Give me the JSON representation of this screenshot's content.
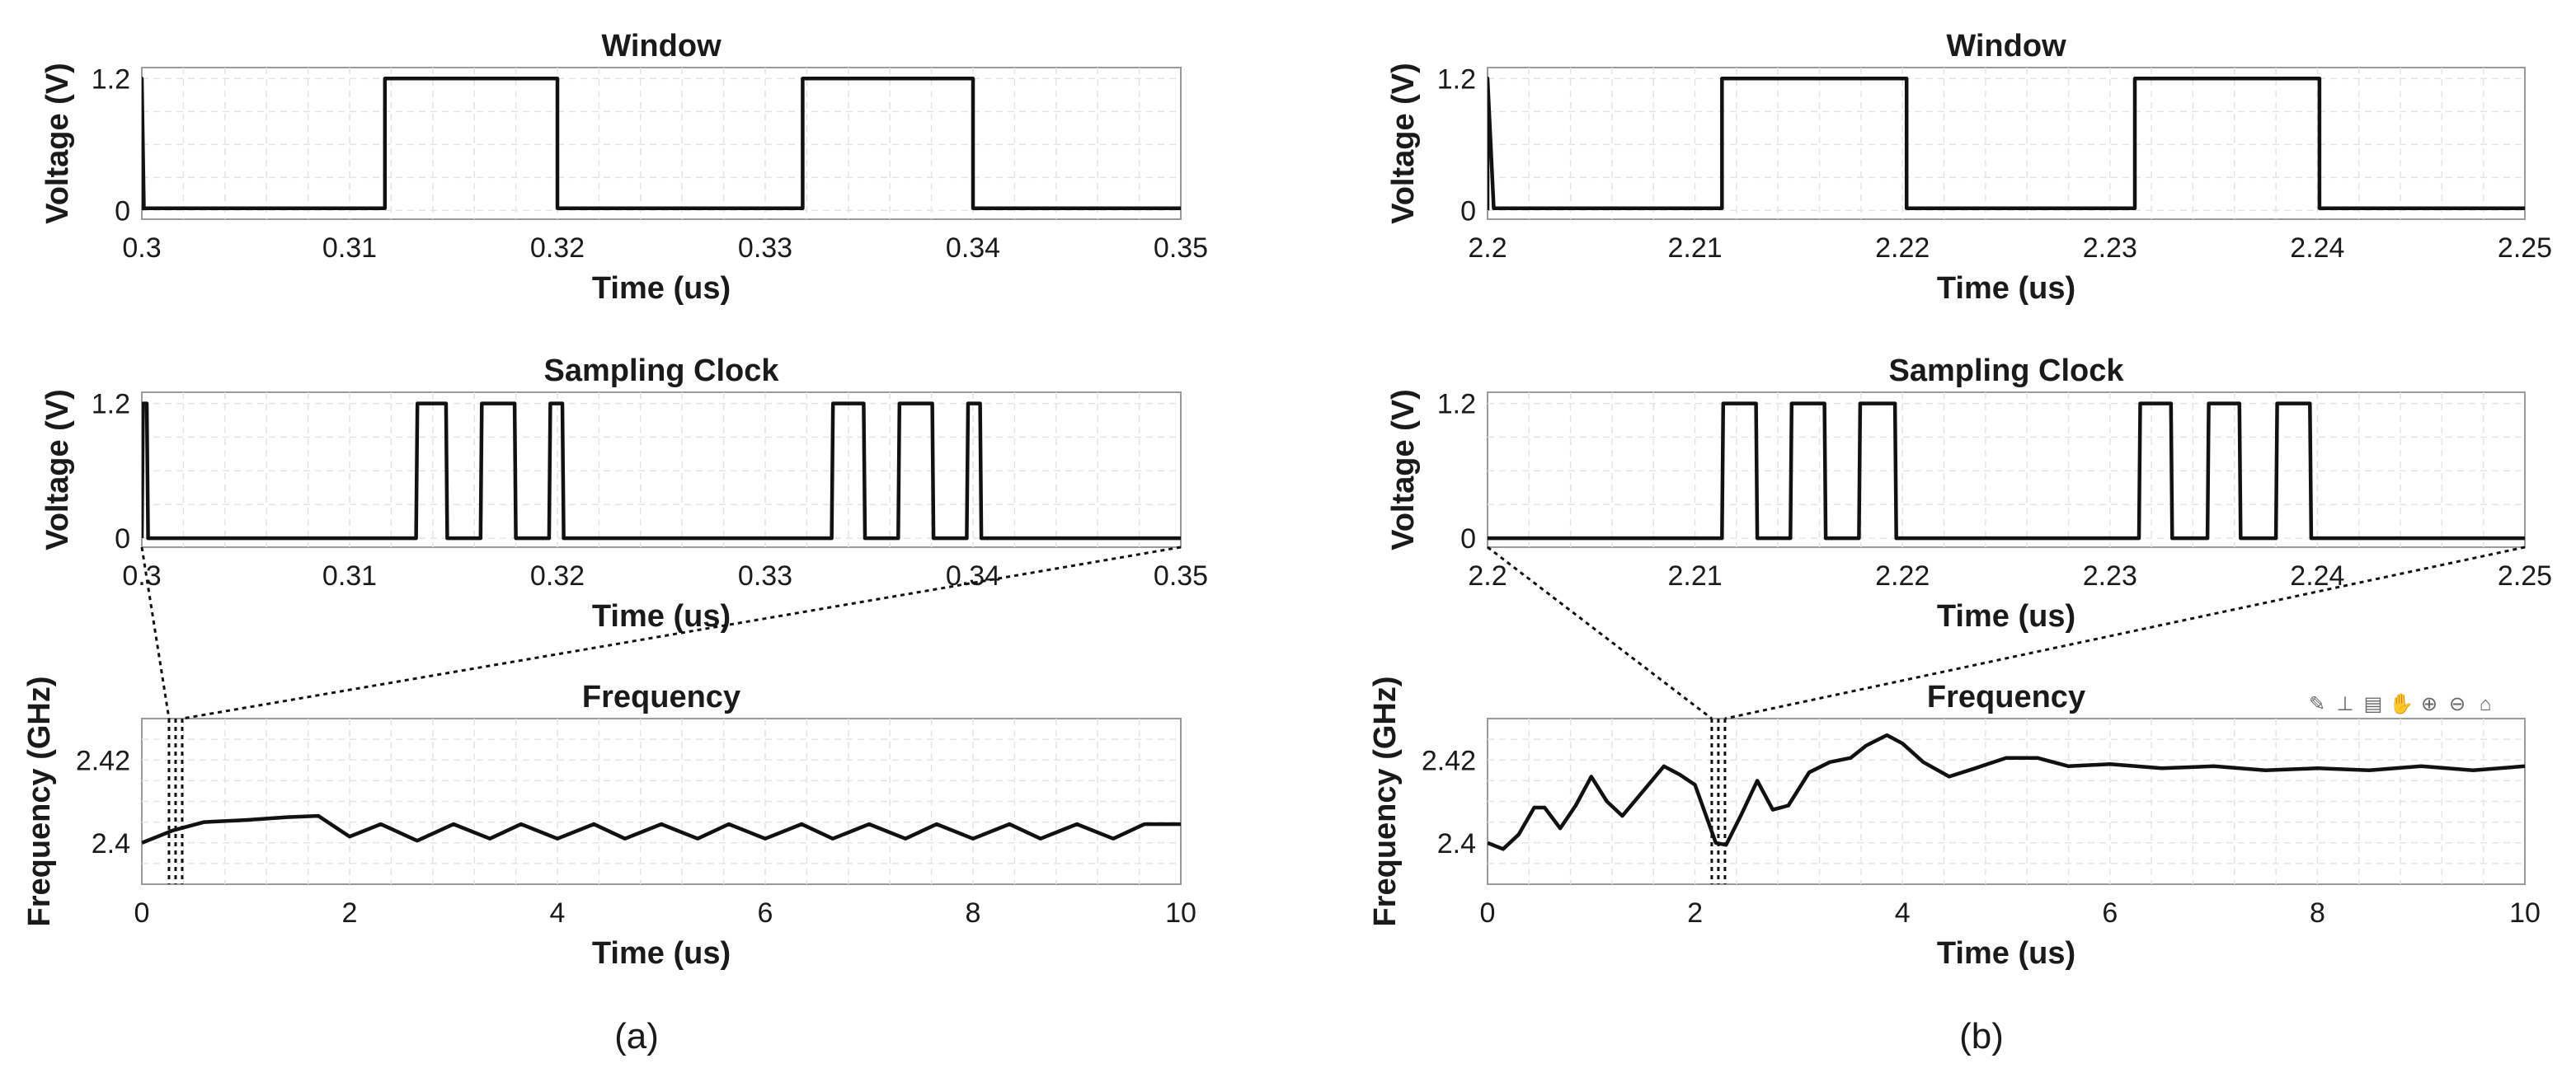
{
  "panels": [
    {
      "caption": "(a)",
      "window": {
        "title": "Window",
        "ylabel": "Voltage (V)",
        "xlabel": "Time (us)",
        "xlim": [
          0.3,
          0.35
        ],
        "ylim": [
          -0.08,
          1.3
        ],
        "xticks": [
          "0.3",
          "0.31",
          "0.32",
          "0.33",
          "0.34",
          "0.35"
        ],
        "yticks": [
          "0",
          "1.2"
        ]
      },
      "clock": {
        "title": "Sampling Clock",
        "ylabel": "Voltage (V)",
        "xlabel": "Time (us)",
        "xlim": [
          0.3,
          0.35
        ],
        "ylim": [
          -0.08,
          1.3
        ],
        "xticks": [
          "0.3",
          "0.31",
          "0.32",
          "0.33",
          "0.34",
          "0.35"
        ],
        "yticks": [
          "0",
          "1.2"
        ]
      },
      "frequency": {
        "title": "Frequency",
        "ylabel": "Frequency (GHz)",
        "xlabel": "Time (us)",
        "xlim": [
          0,
          10
        ],
        "ylim": [
          2.39,
          2.43
        ],
        "xticks": [
          "0",
          "2",
          "4",
          "6",
          "8",
          "10"
        ],
        "yticks": [
          "2.4",
          "2.42"
        ]
      },
      "toolbar": false
    },
    {
      "caption": "(b)",
      "window": {
        "title": "Window",
        "ylabel": "Voltage (V)",
        "xlabel": "Time (us)",
        "xlim": [
          2.2,
          2.25
        ],
        "ylim": [
          -0.08,
          1.3
        ],
        "xticks": [
          "2.2",
          "2.21",
          "2.22",
          "2.23",
          "2.24",
          "2.25"
        ],
        "yticks": [
          "0",
          "1.2"
        ]
      },
      "clock": {
        "title": "Sampling Clock",
        "ylabel": "Voltage (V)",
        "xlabel": "Time (us)",
        "xlim": [
          2.2,
          2.25
        ],
        "ylim": [
          -0.08,
          1.3
        ],
        "xticks": [
          "2.2",
          "2.21",
          "2.22",
          "2.23",
          "2.24",
          "2.25"
        ],
        "yticks": [
          "0",
          "1.2"
        ]
      },
      "frequency": {
        "title": "Frequency",
        "ylabel": "Frequency (GHz)",
        "xlabel": "Time (us)",
        "xlim": [
          0,
          10
        ],
        "ylim": [
          2.39,
          2.43
        ],
        "xticks": [
          "0",
          "2",
          "4",
          "6",
          "8",
          "10"
        ],
        "yticks": [
          "2.4",
          "2.42"
        ]
      },
      "toolbar": true,
      "toolbar_icons": [
        "brush-icon",
        "data-tip-icon",
        "data-cursor-icon",
        "pan-icon",
        "zoom-in-icon",
        "zoom-out-icon",
        "home-icon"
      ]
    }
  ],
  "chart_data": [
    {
      "type": "line",
      "title": "Window",
      "xlabel": "Time (us)",
      "ylabel": "Voltage (V)",
      "xlim": [
        0.3,
        0.35
      ],
      "ylim": [
        -0.08,
        1.3
      ],
      "grid": true,
      "x": [
        0.3,
        0.3,
        0.3001,
        0.3117,
        0.3117,
        0.32,
        0.32,
        0.3318,
        0.3318,
        0.34,
        0.34,
        0.35
      ],
      "y": [
        0,
        1.2,
        0.02,
        0.02,
        1.2,
        1.2,
        0.02,
        0.02,
        1.2,
        1.2,
        0.02,
        0.02
      ]
    },
    {
      "type": "line",
      "title": "Sampling Clock",
      "xlabel": "Time (us)",
      "ylabel": "Voltage (V)",
      "xlim": [
        0.3,
        0.35
      ],
      "ylim": [
        -0.08,
        1.3
      ],
      "grid": true,
      "pulses": [
        [
          0.2995,
          0.3003
        ],
        [
          0.3132,
          0.3147
        ],
        [
          0.3163,
          0.318
        ],
        [
          0.3196,
          0.3203
        ],
        [
          0.3332,
          0.3348
        ],
        [
          0.3364,
          0.3381
        ],
        [
          0.3397,
          0.3404
        ]
      ],
      "low": 0,
      "high": 1.2
    },
    {
      "type": "line",
      "title": "Frequency",
      "xlabel": "Time (us)",
      "ylabel": "Frequency (GHz)",
      "xlim": [
        0,
        10
      ],
      "ylim": [
        2.39,
        2.43
      ],
      "grid": true,
      "x": [
        0,
        0.3,
        0.6,
        1.0,
        1.4,
        1.7,
        1.85,
        2.0,
        2.3,
        2.65,
        3.0,
        3.35,
        3.65,
        4.0,
        4.35,
        4.65,
        5.0,
        5.35,
        5.65,
        6.0,
        6.35,
        6.65,
        7.0,
        7.35,
        7.65,
        8.0,
        8.35,
        8.65,
        9.0,
        9.35,
        9.65,
        10.0
      ],
      "y": [
        2.4,
        2.403,
        2.405,
        2.4055,
        2.4062,
        2.4065,
        2.404,
        2.4015,
        2.4045,
        2.4005,
        2.4045,
        2.401,
        2.4045,
        2.401,
        2.4045,
        2.401,
        2.4045,
        2.401,
        2.4045,
        2.401,
        2.4045,
        2.401,
        2.4045,
        2.401,
        2.4045,
        2.401,
        2.4045,
        2.401,
        2.4045,
        2.401,
        2.4045,
        2.4045
      ],
      "zoom_window": [
        0.3,
        0.35
      ]
    },
    {
      "type": "line",
      "title": "Window",
      "xlabel": "Time (us)",
      "ylabel": "Voltage (V)",
      "xlim": [
        2.2,
        2.25
      ],
      "ylim": [
        -0.08,
        1.3
      ],
      "grid": true,
      "x": [
        2.2,
        2.2,
        2.2003,
        2.2113,
        2.2113,
        2.2202,
        2.2202,
        2.2312,
        2.2312,
        2.2401,
        2.2401,
        2.25
      ],
      "y": [
        0,
        1.2,
        0.02,
        0.02,
        1.2,
        1.2,
        0.02,
        0.02,
        1.2,
        1.2,
        0.02,
        0.02
      ]
    },
    {
      "type": "line",
      "title": "Sampling Clock",
      "xlabel": "Time (us)",
      "ylabel": "Voltage (V)",
      "xlim": [
        2.2,
        2.25
      ],
      "ylim": [
        -0.08,
        1.3
      ],
      "grid": true,
      "pulses": [
        [
          2.2113,
          2.213
        ],
        [
          2.2146,
          2.2163
        ],
        [
          2.2179,
          2.2197
        ],
        [
          2.2314,
          2.233
        ],
        [
          2.2347,
          2.2363
        ],
        [
          2.238,
          2.2397
        ]
      ],
      "low": 0,
      "high": 1.2
    },
    {
      "type": "line",
      "title": "Frequency",
      "xlabel": "Time (us)",
      "ylabel": "Frequency (GHz)",
      "xlim": [
        0,
        10
      ],
      "ylim": [
        2.39,
        2.43
      ],
      "grid": true,
      "x": [
        0,
        0.15,
        0.3,
        0.45,
        0.55,
        0.7,
        0.85,
        1.0,
        1.15,
        1.3,
        1.5,
        1.7,
        1.85,
        2.0,
        2.1,
        2.2,
        2.3,
        2.45,
        2.6,
        2.75,
        2.9,
        3.1,
        3.3,
        3.5,
        3.65,
        3.85,
        4.0,
        4.2,
        4.45,
        4.7,
        5.0,
        5.3,
        5.6,
        6.0,
        6.5,
        7.0,
        7.5,
        8.0,
        8.5,
        9.0,
        9.5,
        10.0
      ],
      "y": [
        2.4,
        2.3985,
        2.402,
        2.4085,
        2.4085,
        2.4035,
        2.409,
        2.416,
        2.41,
        2.4065,
        2.4125,
        2.4185,
        2.4165,
        2.414,
        2.407,
        2.4,
        2.3995,
        2.407,
        2.415,
        2.408,
        2.409,
        2.417,
        2.4195,
        2.4205,
        2.4235,
        2.426,
        2.424,
        2.4195,
        2.416,
        2.418,
        2.4205,
        2.4205,
        2.4185,
        2.419,
        2.418,
        2.4185,
        2.4175,
        2.418,
        2.4175,
        2.4185,
        2.4175,
        2.4185
      ],
      "zoom_window": [
        2.2,
        2.25
      ]
    }
  ]
}
